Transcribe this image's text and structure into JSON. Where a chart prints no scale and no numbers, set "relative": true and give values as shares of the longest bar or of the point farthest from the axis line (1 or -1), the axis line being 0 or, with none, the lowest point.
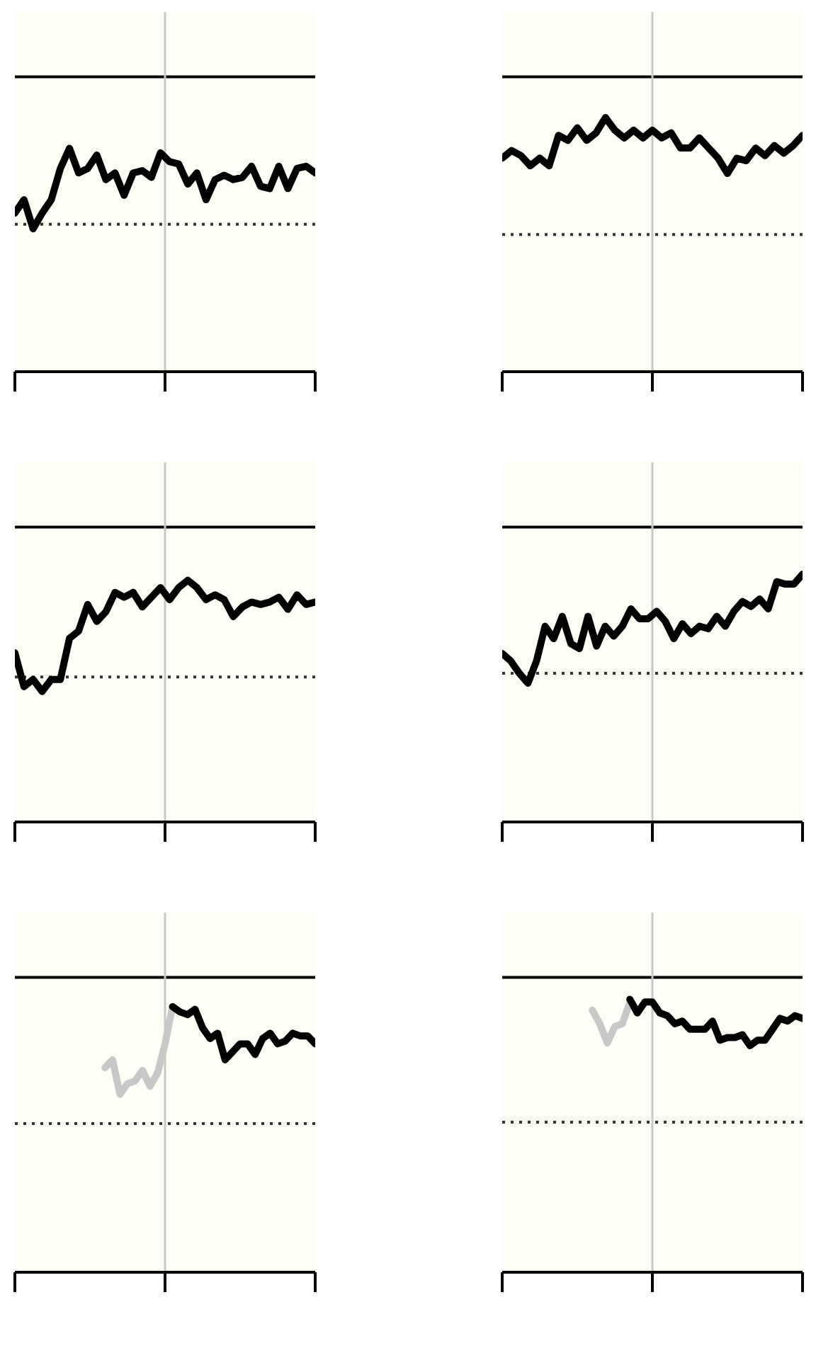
{
  "chart_data": [
    {
      "type": "line",
      "relative": true,
      "grid": false,
      "line_style": "solid",
      "categories": [
        null,
        null,
        null,
        null,
        null,
        null,
        null,
        null,
        null,
        null,
        null,
        null,
        null,
        null,
        null,
        null,
        null,
        null,
        null,
        null,
        null,
        null,
        null,
        null,
        null,
        null,
        null,
        null,
        null,
        null,
        null,
        null,
        null,
        null
      ],
      "ref_lines": [
        {
          "axis": "y",
          "value": 1.32,
          "color": "#000000",
          "line_style": "solid"
        },
        {
          "axis": "y",
          "value": 0.66,
          "color": "#333333",
          "line_style": "dotted"
        },
        {
          "axis": "x",
          "color": "#c8c8c8",
          "line_style": "solid"
        }
      ],
      "series": [
        {
          "color": "#000000",
          "values": [
            0.71,
            0.77,
            0.64,
            0.71,
            0.77,
            0.91,
            1.0,
            0.89,
            0.91,
            0.97,
            0.86,
            0.89,
            0.79,
            0.89,
            0.9,
            0.87,
            0.98,
            0.94,
            0.93,
            0.84,
            0.89,
            0.77,
            0.86,
            0.88,
            0.86,
            0.87,
            0.92,
            0.83,
            0.82,
            0.92,
            0.82,
            0.91,
            0.92,
            0.89
          ]
        }
      ]
    },
    {
      "type": "line",
      "relative": true,
      "grid": false,
      "line_style": "solid",
      "categories": [
        null,
        null,
        null,
        null,
        null,
        null,
        null,
        null,
        null,
        null,
        null,
        null,
        null,
        null,
        null,
        null,
        null,
        null,
        null,
        null,
        null,
        null,
        null,
        null,
        null,
        null,
        null,
        null,
        null,
        null,
        null,
        null,
        null
      ],
      "ref_lines": [
        {
          "axis": "y",
          "value": 1.16,
          "color": "#000000",
          "line_style": "solid"
        },
        {
          "axis": "y",
          "value": 0.54,
          "color": "#333333",
          "line_style": "dotted"
        },
        {
          "axis": "x",
          "color": "#c8c8c8",
          "line_style": "solid"
        }
      ],
      "series": [
        {
          "color": "#000000",
          "values": [
            0.84,
            0.87,
            0.85,
            0.81,
            0.84,
            0.81,
            0.93,
            0.91,
            0.96,
            0.91,
            0.94,
            1.0,
            0.95,
            0.92,
            0.95,
            0.92,
            0.95,
            0.92,
            0.94,
            0.88,
            0.88,
            0.92,
            0.88,
            0.84,
            0.78,
            0.84,
            0.83,
            0.88,
            0.85,
            0.89,
            0.86,
            0.89,
            0.93
          ]
        }
      ]
    },
    {
      "type": "line",
      "relative": true,
      "grid": false,
      "line_style": "solid",
      "categories": [
        null,
        null,
        null,
        null,
        null,
        null,
        null,
        null,
        null,
        null,
        null,
        null,
        null,
        null,
        null,
        null,
        null,
        null,
        null,
        null,
        null,
        null,
        null,
        null,
        null,
        null,
        null,
        null,
        null,
        null,
        null,
        null,
        null,
        null
      ],
      "ref_lines": [
        {
          "axis": "y",
          "value": 1.22,
          "color": "#000000",
          "line_style": "solid"
        },
        {
          "axis": "y",
          "value": 0.6,
          "color": "#333333",
          "line_style": "dotted"
        },
        {
          "axis": "x",
          "color": "#c8c8c8",
          "line_style": "solid"
        }
      ],
      "series": [
        {
          "color": "#000000",
          "values": [
            0.7,
            0.56,
            0.59,
            0.54,
            0.59,
            0.59,
            0.76,
            0.79,
            0.9,
            0.83,
            0.87,
            0.95,
            0.93,
            0.95,
            0.89,
            0.93,
            0.97,
            0.92,
            0.97,
            1.0,
            0.97,
            0.92,
            0.94,
            0.92,
            0.85,
            0.89,
            0.91,
            0.9,
            0.91,
            0.93,
            0.88,
            0.94,
            0.9,
            0.91
          ]
        }
      ]
    },
    {
      "type": "line",
      "relative": true,
      "grid": false,
      "line_style": "solid",
      "categories": [
        null,
        null,
        null,
        null,
        null,
        null,
        null,
        null,
        null,
        null,
        null,
        null,
        null,
        null,
        null,
        null,
        null,
        null,
        null,
        null,
        null,
        null,
        null,
        null,
        null,
        null,
        null,
        null,
        null,
        null,
        null,
        null,
        null,
        null,
        null,
        null
      ],
      "ref_lines": [
        {
          "axis": "y",
          "value": 1.19,
          "color": "#000000",
          "line_style": "solid"
        },
        {
          "axis": "y",
          "value": 0.6,
          "color": "#333333",
          "line_style": "dotted"
        },
        {
          "axis": "x",
          "color": "#c8c8c8",
          "line_style": "solid"
        }
      ],
      "series": [
        {
          "color": "#000000",
          "values": [
            0.68,
            0.65,
            0.6,
            0.56,
            0.65,
            0.79,
            0.74,
            0.83,
            0.72,
            0.7,
            0.83,
            0.71,
            0.79,
            0.75,
            0.79,
            0.86,
            0.82,
            0.82,
            0.85,
            0.81,
            0.74,
            0.8,
            0.76,
            0.79,
            0.78,
            0.83,
            0.79,
            0.85,
            0.89,
            0.87,
            0.9,
            0.86,
            0.97,
            0.96,
            0.96,
            1.0
          ]
        }
      ]
    },
    {
      "type": "line",
      "relative": true,
      "grid": false,
      "line_style": "solid",
      "categories": [
        null,
        null,
        null,
        null,
        null,
        null,
        null,
        null,
        null,
        null,
        null,
        null,
        null,
        null,
        null,
        null,
        null,
        null,
        null,
        null,
        null,
        null,
        null,
        null,
        null,
        null,
        null,
        null,
        null,
        null,
        null,
        null,
        null,
        null,
        null,
        null,
        null,
        null,
        null,
        null,
        null
      ],
      "ref_lines": [
        {
          "axis": "y",
          "value": 1.11,
          "color": "#000000",
          "line_style": "solid"
        },
        {
          "axis": "y",
          "value": 0.56,
          "color": "#333333",
          "line_style": "dotted"
        },
        {
          "axis": "x",
          "color": "#c8c8c8",
          "line_style": "solid"
        }
      ],
      "series": [
        {
          "color": "#c8c8c8",
          "values": [
            null,
            null,
            null,
            null,
            null,
            null,
            null,
            null,
            null,
            null,
            null,
            null,
            0.77,
            0.8,
            0.67,
            0.71,
            0.72,
            0.76,
            0.7,
            0.75,
            0.86,
            1.0,
            null,
            null,
            null,
            null,
            null,
            null,
            null,
            null,
            null,
            null,
            null,
            null,
            null,
            null,
            null,
            null,
            null,
            null,
            null
          ]
        },
        {
          "color": "#000000",
          "values": [
            null,
            null,
            null,
            null,
            null,
            null,
            null,
            null,
            null,
            null,
            null,
            null,
            null,
            null,
            null,
            null,
            null,
            null,
            null,
            null,
            null,
            1.0,
            0.98,
            0.97,
            0.99,
            0.92,
            0.88,
            0.9,
            0.8,
            0.83,
            0.86,
            0.86,
            0.82,
            0.88,
            0.9,
            0.86,
            0.87,
            0.9,
            0.89,
            0.89,
            0.86
          ]
        }
      ]
    },
    {
      "type": "line",
      "relative": true,
      "grid": false,
      "line_style": "solid",
      "categories": [
        null,
        null,
        null,
        null,
        null,
        null,
        null,
        null,
        null,
        null,
        null,
        null,
        null,
        null,
        null,
        null,
        null,
        null,
        null,
        null,
        null,
        null,
        null,
        null,
        null,
        null,
        null,
        null,
        null,
        null,
        null,
        null,
        null,
        null,
        null,
        null,
        null,
        null,
        null,
        null,
        null
      ],
      "ref_lines": [
        {
          "axis": "y",
          "value": 1.08,
          "color": "#000000",
          "line_style": "solid"
        },
        {
          "axis": "y",
          "value": 0.55,
          "color": "#333333",
          "line_style": "dotted"
        },
        {
          "axis": "x",
          "color": "#c8c8c8",
          "line_style": "solid"
        }
      ],
      "series": [
        {
          "color": "#c8c8c8",
          "values": [
            null,
            null,
            null,
            null,
            null,
            null,
            null,
            null,
            null,
            null,
            null,
            null,
            0.96,
            0.91,
            0.84,
            0.9,
            0.91,
            0.99,
            null,
            null,
            null,
            null,
            null,
            null,
            null,
            null,
            null,
            null,
            null,
            null,
            null,
            null,
            null,
            null,
            null,
            null,
            null,
            null,
            null,
            null,
            null
          ]
        },
        {
          "color": "#000000",
          "values": [
            null,
            null,
            null,
            null,
            null,
            null,
            null,
            null,
            null,
            null,
            null,
            null,
            null,
            null,
            null,
            null,
            null,
            1.0,
            0.95,
            0.99,
            0.99,
            0.95,
            0.94,
            0.91,
            0.92,
            0.89,
            0.89,
            0.89,
            0.92,
            0.85,
            0.86,
            0.86,
            0.87,
            0.83,
            0.85,
            0.85,
            0.89,
            0.93,
            0.92,
            0.94,
            0.93
          ]
        }
      ]
    }
  ]
}
